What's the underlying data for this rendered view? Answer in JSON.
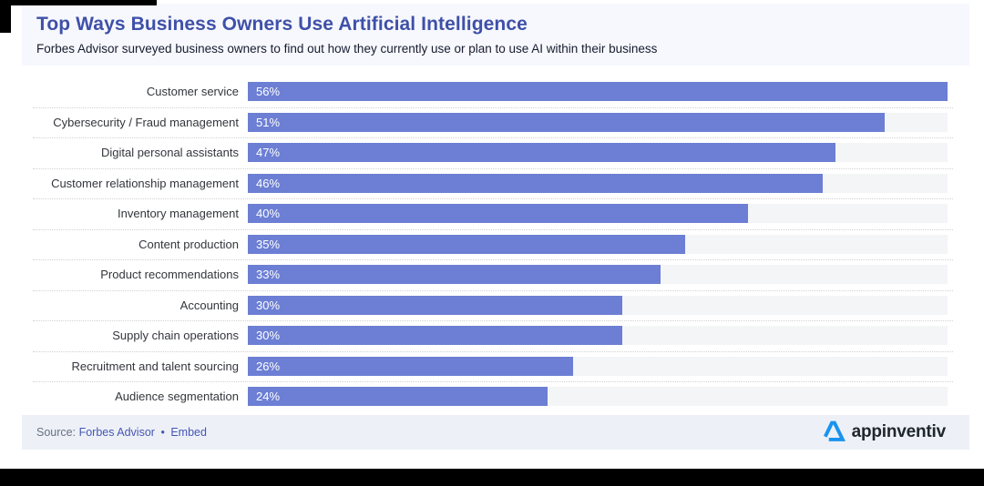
{
  "header": {
    "title": "Top Ways Business Owners Use Artificial Intelligence",
    "subtitle": "Forbes Advisor surveyed business owners to find out how they currently use or plan to use AI within their business"
  },
  "chart_data": {
    "type": "bar",
    "orientation": "horizontal",
    "title": "Top Ways Business Owners Use Artificial Intelligence",
    "categories": [
      "Customer service",
      "Cybersecurity / Fraud management",
      "Digital personal assistants",
      "Customer relationship management",
      "Inventory management",
      "Content production",
      "Product recommendations",
      "Accounting",
      "Supply chain operations",
      "Recruitment and talent sourcing",
      "Audience segmentation"
    ],
    "values": [
      56,
      51,
      47,
      46,
      40,
      35,
      33,
      30,
      30,
      26,
      24
    ],
    "value_suffix": "%",
    "scale_max": 56,
    "xlabel": "",
    "ylabel": "",
    "legend": "none",
    "grid": "dotted-row-separators",
    "value_labels": "inside-bar-left"
  },
  "footer": {
    "source_prefix": "Source:",
    "source_link": "Forbes Advisor",
    "separator": "•",
    "embed_link": "Embed",
    "logo_text": "appinventiv"
  },
  "colors": {
    "title": "#3f50a8",
    "bar": "#6c7fd4",
    "track": "#f4f5f7",
    "header_bg": "#f6f8fd",
    "footer_bg": "#edf1f7",
    "logo_blue": "#1a93ef",
    "link": "#4656b4"
  }
}
